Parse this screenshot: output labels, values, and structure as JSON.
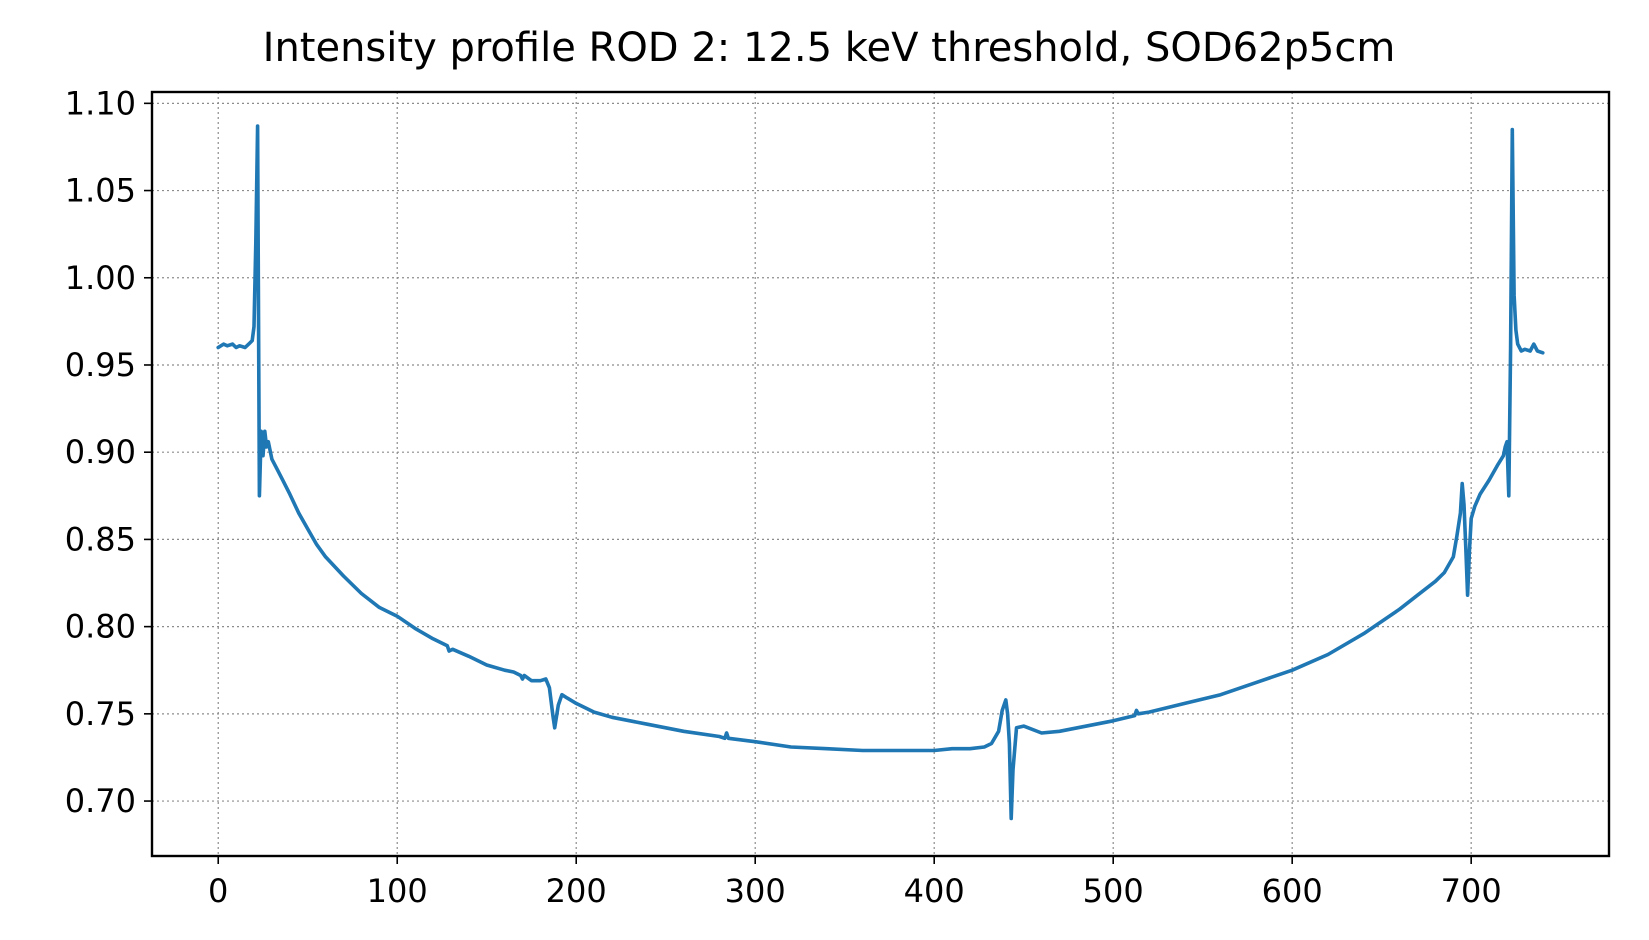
{
  "chart_data": {
    "type": "line",
    "title": "Intensity profile ROD 2: 12.5 keV threshold, SOD62p5cm",
    "xlabel": "",
    "ylabel": "",
    "xlim": [
      -37,
      777
    ],
    "ylim": [
      0.6685,
      1.1065
    ],
    "xticks": [
      0,
      100,
      200,
      300,
      400,
      500,
      600,
      700
    ],
    "xtick_labels": [
      "0",
      "100",
      "200",
      "300",
      "400",
      "500",
      "600",
      "700"
    ],
    "yticks": [
      0.7,
      0.75,
      0.8,
      0.85,
      0.9,
      0.95,
      1.0,
      1.05,
      1.1
    ],
    "ytick_labels": [
      "0.70",
      "0.75",
      "0.80",
      "0.85",
      "0.90",
      "0.95",
      "1.00",
      "1.05",
      "1.10"
    ],
    "grid": true,
    "legend": "none",
    "series": [
      {
        "color": "#1f77b4",
        "x": [
          0,
          3,
          5,
          8,
          10,
          12,
          15,
          17,
          19,
          20,
          21,
          22,
          23,
          24,
          25,
          26,
          27,
          28,
          30,
          33,
          36,
          40,
          45,
          50,
          55,
          60,
          70,
          80,
          90,
          100,
          110,
          120,
          128,
          129,
          131,
          140,
          150,
          160,
          165,
          169,
          170,
          171,
          175,
          180,
          183,
          185,
          187,
          188,
          190,
          192,
          195,
          200,
          210,
          220,
          240,
          260,
          280,
          283,
          284,
          285,
          300,
          320,
          340,
          360,
          380,
          400,
          410,
          420,
          428,
          432,
          436,
          438,
          440,
          441,
          442,
          443,
          444,
          446,
          450,
          460,
          470,
          480,
          490,
          500,
          512,
          513,
          514,
          520,
          540,
          560,
          580,
          600,
          620,
          640,
          660,
          670,
          680,
          685,
          690,
          692,
          694,
          695,
          696,
          697,
          698,
          699,
          700,
          702,
          705,
          710,
          715,
          718,
          719,
          720,
          721,
          722,
          723,
          724,
          725,
          726,
          728,
          730,
          733,
          735,
          737,
          740
        ],
        "y": [
          0.96,
          0.962,
          0.961,
          0.962,
          0.96,
          0.961,
          0.96,
          0.962,
          0.964,
          0.972,
          1.02,
          1.087,
          0.875,
          0.912,
          0.898,
          0.912,
          0.903,
          0.906,
          0.896,
          0.89,
          0.884,
          0.876,
          0.865,
          0.856,
          0.847,
          0.84,
          0.829,
          0.819,
          0.811,
          0.806,
          0.799,
          0.793,
          0.789,
          0.786,
          0.787,
          0.783,
          0.778,
          0.775,
          0.774,
          0.772,
          0.77,
          0.772,
          0.769,
          0.769,
          0.77,
          0.765,
          0.749,
          0.742,
          0.755,
          0.761,
          0.759,
          0.756,
          0.751,
          0.748,
          0.744,
          0.74,
          0.737,
          0.736,
          0.739,
          0.736,
          0.734,
          0.731,
          0.73,
          0.729,
          0.729,
          0.729,
          0.73,
          0.73,
          0.731,
          0.733,
          0.74,
          0.752,
          0.758,
          0.75,
          0.733,
          0.69,
          0.718,
          0.742,
          0.743,
          0.739,
          0.74,
          0.742,
          0.744,
          0.746,
          0.749,
          0.752,
          0.75,
          0.751,
          0.756,
          0.761,
          0.768,
          0.775,
          0.784,
          0.796,
          0.81,
          0.818,
          0.826,
          0.831,
          0.84,
          0.852,
          0.865,
          0.882,
          0.87,
          0.845,
          0.818,
          0.843,
          0.862,
          0.869,
          0.876,
          0.884,
          0.893,
          0.898,
          0.903,
          0.906,
          0.875,
          0.96,
          1.085,
          0.99,
          0.97,
          0.962,
          0.958,
          0.959,
          0.958,
          0.962,
          0.958,
          0.957
        ]
      }
    ]
  }
}
